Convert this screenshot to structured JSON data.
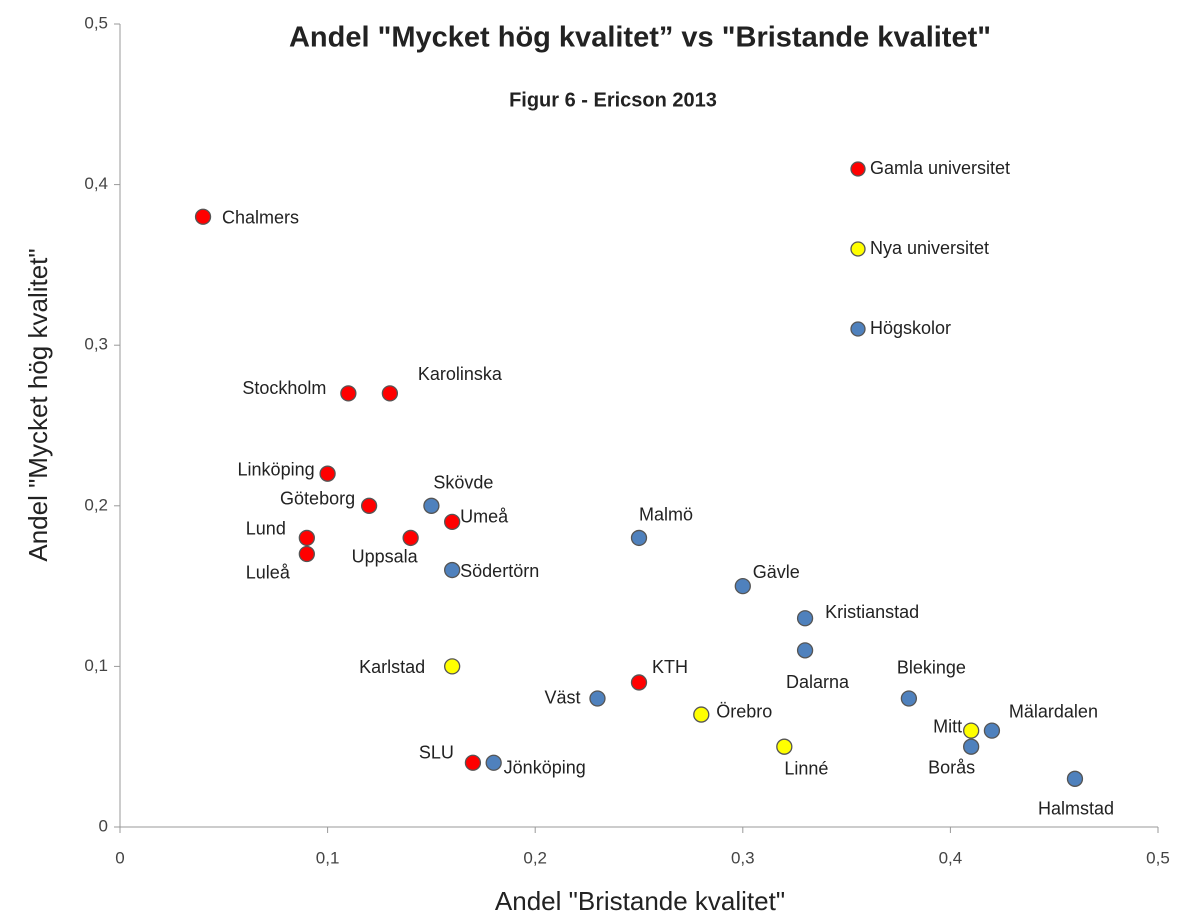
{
  "chart_data": {
    "type": "scatter",
    "title": "Andel \"Mycket hög kvalitet” vs \"Bristande kvalitet\"",
    "subtitle": "Figur 6 - Ericson 2013",
    "x_label": "Andel \"Bristande kvalitet\"",
    "y_label": "Andel \"Mycket hög kvalitet\"",
    "xlim": [
      0,
      0.5
    ],
    "ylim": [
      0,
      0.5
    ],
    "xticks": [
      0,
      {
        "value": 0.1,
        "label": "0,1"
      },
      {
        "value": 0.2,
        "label": "0,2"
      },
      {
        "value": 0.3,
        "label": "0,3"
      },
      {
        "value": 0.4,
        "label": "0,4"
      },
      {
        "value": 0.5,
        "label": "0,5"
      }
    ],
    "yticks": [
      0,
      {
        "value": 0.1,
        "label": "0,1"
      },
      {
        "value": 0.2,
        "label": "0,2"
      },
      {
        "value": 0.3,
        "label": "0,3"
      },
      {
        "value": 0.4,
        "label": "0,4"
      },
      {
        "value": 0.5,
        "label": "0,5"
      }
    ],
    "legend": "top-right",
    "series": [
      {
        "name": "Gamla universitet",
        "color": "#ff0000",
        "labels": [
          "Chalmers",
          "Stockholm",
          "Karolinska",
          "Linköping",
          "Göteborg",
          "Lund",
          "Luleå",
          "Uppsala",
          "Umeå",
          "KTH",
          "SLU"
        ],
        "x": [
          0.04,
          0.11,
          0.13,
          0.1,
          0.12,
          0.09,
          0.09,
          0.14,
          0.16,
          0.25,
          0.17
        ],
        "y": [
          0.38,
          0.27,
          0.27,
          0.22,
          0.2,
          0.18,
          0.17,
          0.18,
          0.19,
          0.09,
          0.04
        ]
      },
      {
        "name": "Nya universitet",
        "color": "#ffff00",
        "labels": [
          "Karlstad",
          "Örebro",
          "Linné",
          "Mitt"
        ],
        "x": [
          0.16,
          0.28,
          0.32,
          0.41
        ],
        "y": [
          0.1,
          0.07,
          0.05,
          0.06
        ]
      },
      {
        "name": "Högskolor",
        "color": "#4f81bd",
        "labels": [
          "Skövde",
          "Södertörn",
          "Malmö",
          "Gävle",
          "Kristianstad",
          "Dalarna",
          "Blekinge",
          "Väst",
          "Jönköping",
          "Mälardalen",
          "Borås",
          "Halmstad"
        ],
        "x": [
          0.15,
          0.16,
          0.25,
          0.3,
          0.33,
          0.33,
          0.38,
          0.23,
          0.18,
          0.42,
          0.41,
          0.46
        ],
        "y": [
          0.2,
          0.16,
          0.18,
          0.15,
          0.13,
          0.11,
          0.08,
          0.08,
          0.04,
          0.06,
          0.05,
          0.03
        ]
      }
    ]
  }
}
